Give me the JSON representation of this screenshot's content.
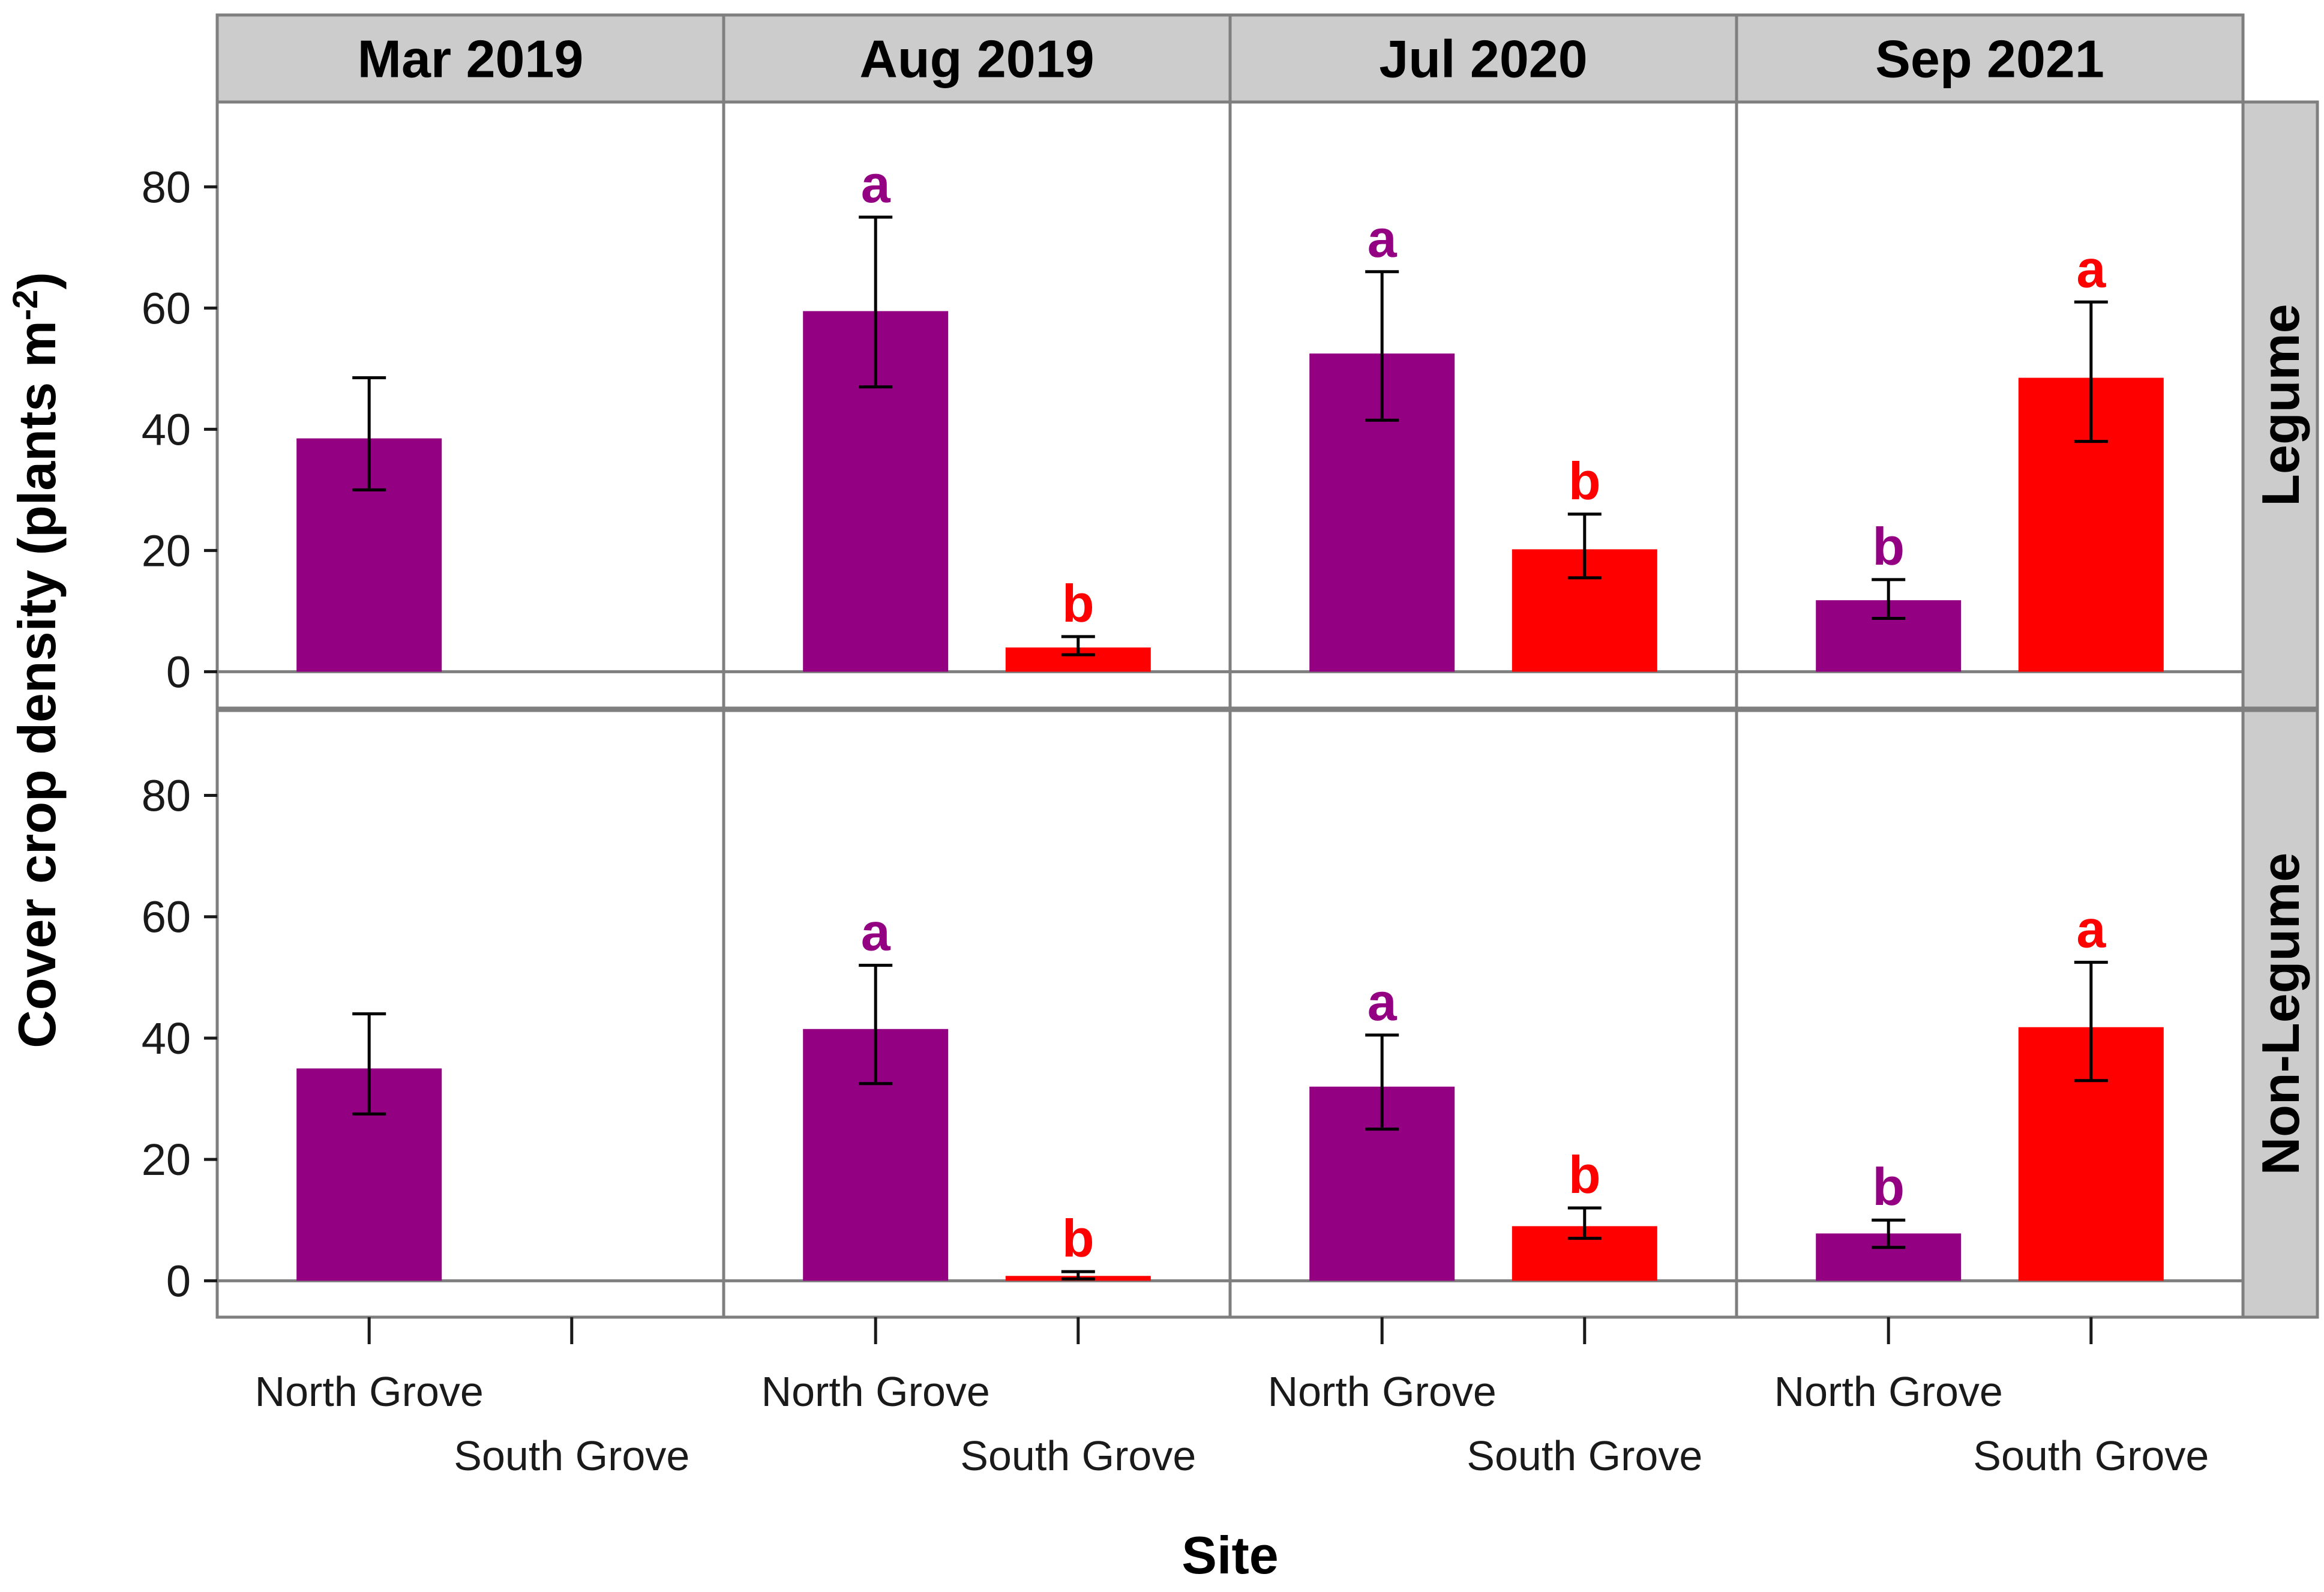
{
  "chart_data": {
    "type": "bar",
    "layout": "faceted grid (columns: dates, rows: cover crop type)",
    "ylabel": "Cover crop density (plants m",
    "ylabel_superscript": "-2",
    "ylabel_close": ")",
    "xlabel": "Site",
    "categories": [
      "North Grove",
      "South Grove"
    ],
    "column_facets": [
      "Mar 2019",
      "Aug 2019",
      "Jul 2020",
      "Sep 2021"
    ],
    "row_facets": [
      "Legume",
      "Non-Legume"
    ],
    "yticks": [
      0,
      20,
      40,
      60,
      80
    ],
    "ylim": [
      -6,
      94
    ],
    "colors": {
      "North Grove": "#930081",
      "South Grove": "#ff0000"
    },
    "panels": [
      {
        "row": "Legume",
        "column": "Mar 2019",
        "bars": [
          {
            "site": "North Grove",
            "value": 38.5,
            "err_low": 30.0,
            "err_high": 48.5,
            "letter": ""
          }
        ]
      },
      {
        "row": "Legume",
        "column": "Aug 2019",
        "bars": [
          {
            "site": "North Grove",
            "value": 59.5,
            "err_low": 47.0,
            "err_high": 75.0,
            "letter": "a"
          },
          {
            "site": "South Grove",
            "value": 4.0,
            "err_low": 2.8,
            "err_high": 5.8,
            "letter": "b"
          }
        ]
      },
      {
        "row": "Legume",
        "column": "Jul 2020",
        "bars": [
          {
            "site": "North Grove",
            "value": 52.5,
            "err_low": 41.5,
            "err_high": 66.0,
            "letter": "a"
          },
          {
            "site": "South Grove",
            "value": 20.2,
            "err_low": 15.5,
            "err_high": 26.0,
            "letter": "b"
          }
        ]
      },
      {
        "row": "Legume",
        "column": "Sep 2021",
        "bars": [
          {
            "site": "North Grove",
            "value": 11.8,
            "err_low": 8.8,
            "err_high": 15.2,
            "letter": "b"
          },
          {
            "site": "South Grove",
            "value": 48.5,
            "err_low": 38.0,
            "err_high": 61.0,
            "letter": "a"
          }
        ]
      },
      {
        "row": "Non-Legume",
        "column": "Mar 2019",
        "bars": [
          {
            "site": "North Grove",
            "value": 35.0,
            "err_low": 27.5,
            "err_high": 44.0,
            "letter": ""
          }
        ]
      },
      {
        "row": "Non-Legume",
        "column": "Aug 2019",
        "bars": [
          {
            "site": "North Grove",
            "value": 41.5,
            "err_low": 32.5,
            "err_high": 52.0,
            "letter": "a"
          },
          {
            "site": "South Grove",
            "value": 0.8,
            "err_low": 0.3,
            "err_high": 1.5,
            "letter": "b"
          }
        ]
      },
      {
        "row": "Non-Legume",
        "column": "Jul 2020",
        "bars": [
          {
            "site": "North Grove",
            "value": 32.0,
            "err_low": 25.0,
            "err_high": 40.5,
            "letter": "a"
          },
          {
            "site": "South Grove",
            "value": 9.0,
            "err_low": 7.0,
            "err_high": 12.0,
            "letter": "b"
          }
        ]
      },
      {
        "row": "Non-Legume",
        "column": "Sep 2021",
        "bars": [
          {
            "site": "North Grove",
            "value": 7.8,
            "err_low": 5.5,
            "err_high": 10.0,
            "letter": "b"
          },
          {
            "site": "South Grove",
            "value": 41.8,
            "err_low": 33.0,
            "err_high": 52.5,
            "letter": "a"
          }
        ]
      }
    ]
  }
}
